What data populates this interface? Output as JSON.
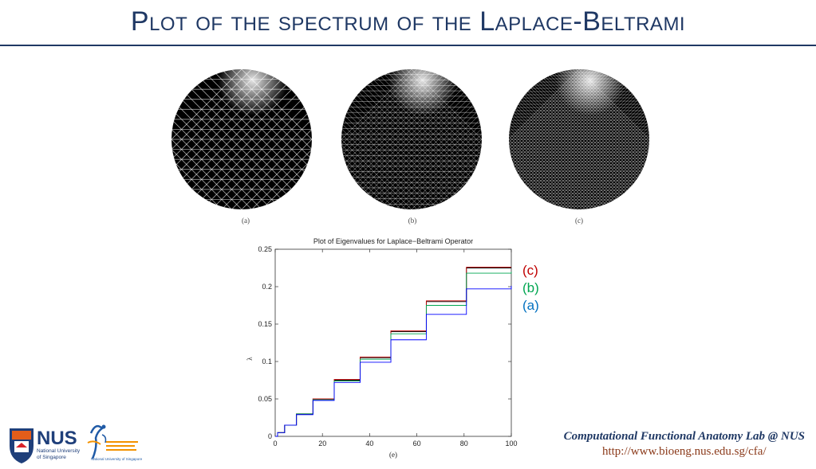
{
  "slide": {
    "title": "Plot of the spectrum of the Laplace-Beltrami"
  },
  "spheres": [
    {
      "caption": "(a)",
      "mesh_density": "coarse"
    },
    {
      "caption": "(b)",
      "mesh_density": "medium"
    },
    {
      "caption": "(c)",
      "mesh_density": "fine"
    }
  ],
  "legend": [
    {
      "label": "(c)",
      "color": "#c00000"
    },
    {
      "label": "(b)",
      "color": "#00a651"
    },
    {
      "label": "(a)",
      "color": "#0070c0"
    }
  ],
  "footer": {
    "lab_name": "Computational Functional Anatomy Lab @ NUS",
    "lab_url": "http://www.bioeng.nus.edu.sg/cfa/",
    "nus_text": "NUS",
    "nus_sub1": "National University",
    "nus_sub2": "of Singapore",
    "ngs_sub": "National University of Singapore"
  },
  "chart_data": {
    "type": "line",
    "title": "Plot of Eigenvalues for Laplace−Beltrami Operator",
    "xlabel": "(e)",
    "ylabel": "λ",
    "xlim": [
      0,
      100
    ],
    "ylim": [
      0,
      0.25
    ],
    "xticks": [
      0,
      20,
      40,
      60,
      80,
      100
    ],
    "yticks": [
      0,
      0.05,
      0.1,
      0.15,
      0.2,
      0.25
    ],
    "ytick_labels": [
      "0",
      "0.05",
      "0.1",
      "0.15",
      "0.2",
      "0.25"
    ],
    "grid": false,
    "series": [
      {
        "name": "(c)",
        "color": "#000000",
        "steps": [
          [
            0,
            0
          ],
          [
            1,
            0.005
          ],
          [
            4,
            0.015
          ],
          [
            9,
            0.03
          ],
          [
            16,
            0.05
          ],
          [
            25,
            0.075
          ],
          [
            36,
            0.105
          ],
          [
            49,
            0.14
          ],
          [
            64,
            0.18
          ],
          [
            81,
            0.225
          ],
          [
            100,
            0.225
          ]
        ]
      },
      {
        "name": "(c)",
        "color": "#c00000",
        "steps": [
          [
            0,
            0
          ],
          [
            1,
            0.005
          ],
          [
            4,
            0.015
          ],
          [
            9,
            0.03
          ],
          [
            16,
            0.05
          ],
          [
            25,
            0.076
          ],
          [
            36,
            0.106
          ],
          [
            49,
            0.141
          ],
          [
            64,
            0.181
          ],
          [
            81,
            0.226
          ],
          [
            100,
            0.226
          ]
        ]
      },
      {
        "name": "(b)",
        "color": "#00a651",
        "steps": [
          [
            0,
            0
          ],
          [
            1,
            0.005
          ],
          [
            4,
            0.015
          ],
          [
            9,
            0.03
          ],
          [
            16,
            0.049
          ],
          [
            25,
            0.074
          ],
          [
            36,
            0.103
          ],
          [
            49,
            0.137
          ],
          [
            64,
            0.175
          ],
          [
            81,
            0.218
          ],
          [
            100,
            0.22
          ]
        ]
      },
      {
        "name": "(a)",
        "color": "#0000ff",
        "steps": [
          [
            0,
            0
          ],
          [
            1,
            0.005
          ],
          [
            4,
            0.015
          ],
          [
            9,
            0.029
          ],
          [
            16,
            0.048
          ],
          [
            25,
            0.072
          ],
          [
            36,
            0.099
          ],
          [
            49,
            0.129
          ],
          [
            64,
            0.163
          ],
          [
            81,
            0.197
          ],
          [
            100,
            0.201
          ]
        ]
      }
    ]
  }
}
